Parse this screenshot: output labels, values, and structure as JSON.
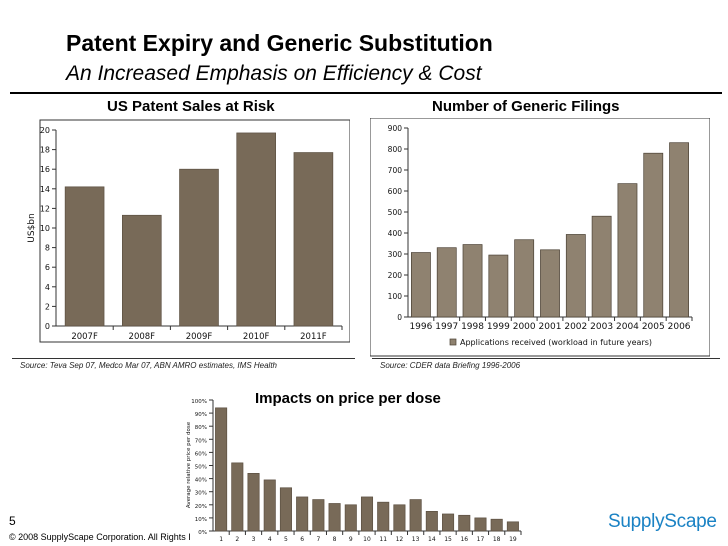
{
  "slide": {
    "title": "Patent Expiry and Generic Substitution",
    "subtitle": "An Increased Emphasis on Efficiency & Cost",
    "page_number": "5",
    "copyright": "© 2008 SupplyScape Corporation. All Rights I",
    "logo_text": "SupplyScape",
    "colors": {
      "bar_dark": "#786a58",
      "bar_light": "#8f8270",
      "logo": "#1a82c4"
    }
  },
  "chart_data": [
    {
      "type": "bar",
      "title": "US Patent Sales at Risk",
      "ylabel": "US$bn",
      "xlabel": "",
      "categories": [
        "2007F",
        "2008F",
        "2009F",
        "2010F",
        "2011F"
      ],
      "values": [
        14.2,
        11.3,
        16.0,
        19.7,
        17.7
      ],
      "ylim": [
        0,
        20
      ],
      "yticks": [
        0,
        2,
        4,
        6,
        8,
        10,
        12,
        14,
        16,
        18,
        20
      ],
      "source": "Source: Teva Sep 07, Medco Mar 07, ABN AMRO estimates, IMS Health"
    },
    {
      "type": "bar",
      "title": "Number of Generic Filings",
      "categories": [
        "1996",
        "1997",
        "1998",
        "1999",
        "2000",
        "2001",
        "2002",
        "2003",
        "2004",
        "2005",
        "2006"
      ],
      "values": [
        307,
        330,
        345,
        295,
        368,
        320,
        393,
        480,
        635,
        780,
        830
      ],
      "ylim": [
        0,
        900
      ],
      "yticks": [
        0,
        100,
        200,
        300,
        400,
        500,
        600,
        700,
        800,
        900
      ],
      "legend": "Applications received (workload in future years)",
      "legend_position": "bottom",
      "source": "Source: CDER data Briefing 1996-2006"
    },
    {
      "type": "bar",
      "title": "Impacts on price per dose",
      "ylabel": "Average relative price per dose",
      "categories": [
        "1",
        "2",
        "3",
        "4",
        "5",
        "6",
        "7",
        "8",
        "9",
        "10",
        "11",
        "12",
        "13",
        "14",
        "15",
        "16",
        "17",
        "18",
        "19"
      ],
      "values": [
        94,
        52,
        44,
        39,
        33,
        26,
        24,
        21,
        20,
        26,
        22,
        20,
        24,
        15,
        13,
        12,
        10,
        9,
        7
      ],
      "ylim": [
        0,
        100
      ],
      "yticks": [
        "0%",
        "10%",
        "20%",
        "30%",
        "40%",
        "50%",
        "60%",
        "70%",
        "80%",
        "90%",
        "100%"
      ]
    }
  ]
}
